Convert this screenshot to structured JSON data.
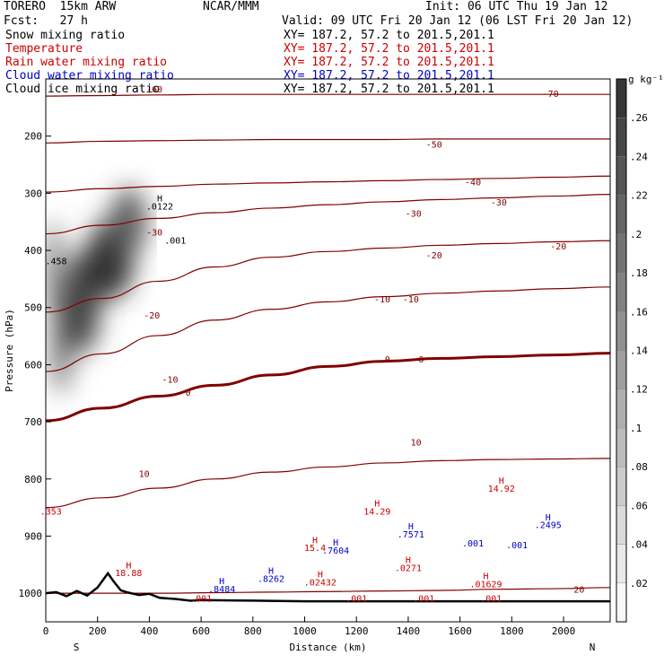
{
  "header": {
    "model": "TORERO  15km ARW",
    "fcst": "Fcst:   27 h",
    "center": "NCAR/MMM",
    "init": "Init: 06 UTC Thu 19 Jan 12",
    "valid": "Valid: 09 UTC Fri 20 Jan 12 (06 LST Fri 20 Jan 12)",
    "fields": [
      {
        "name": "Snow mixing ratio",
        "xy": "XY= 187.2, 57.2 to 201.5,201.1",
        "color": "#000000"
      },
      {
        "name": "Temperature",
        "xy": "XY= 187.2, 57.2 to 201.5,201.1",
        "color": "#cc0000"
      },
      {
        "name": "Rain water mixing ratio",
        "xy": "XY= 187.2, 57.2 to 201.5,201.1",
        "color": "#cc0000"
      },
      {
        "name": "Cloud water mixing ratio",
        "xy": "XY= 187.2, 57.2 to 201.5,201.1",
        "color": "#0000cc"
      },
      {
        "name": "Cloud ice mixing ratio",
        "xy": "XY= 187.2, 57.2 to 201.5,201.1",
        "color": "#000000"
      }
    ]
  },
  "chart_data": {
    "type": "cross-section",
    "xlabel": "Distance (km)",
    "ylabel": "Pressure (hPa)",
    "xlim": [
      0,
      2180
    ],
    "ylim": [
      1050,
      100
    ],
    "x_ticks": [
      0,
      200,
      400,
      600,
      800,
      1000,
      1200,
      1400,
      1600,
      1800,
      2000
    ],
    "y_ticks": [
      200,
      300,
      400,
      500,
      600,
      700,
      800,
      900,
      1000
    ],
    "x_end_labels": {
      "left": "S",
      "right": "N"
    },
    "colorbar": {
      "unit": "g kg⁻¹",
      "ticks": [
        ".02",
        ".04",
        ".06",
        ".08",
        ".1",
        ".12",
        ".14",
        ".16",
        ".18",
        ".2",
        ".22",
        ".24",
        ".26"
      ],
      "min": 0,
      "max": 0.28,
      "color_low": "#ffffff",
      "color_high": "#303030"
    },
    "temperature_isotherms": {
      "color": "#800000",
      "levels": [
        {
          "t": 20,
          "p": [
            1000,
            1000,
            1000,
            999,
            998,
            997,
            996,
            995,
            993,
            992,
            990
          ]
        },
        {
          "t": 10,
          "p": [
            850,
            833,
            816,
            800,
            788,
            779,
            772,
            768,
            766,
            765,
            764
          ]
        },
        {
          "t": 0,
          "p": [
            698,
            676,
            655,
            636,
            618,
            603,
            594,
            589,
            586,
            583,
            580
          ]
        },
        {
          "t": -10,
          "p": [
            612,
            581,
            549,
            522,
            503,
            490,
            481,
            475,
            471,
            467,
            464
          ]
        },
        {
          "t": -20,
          "p": [
            508,
            484,
            454,
            429,
            412,
            402,
            396,
            391,
            388,
            385,
            383
          ]
        },
        {
          "t": -30,
          "p": [
            371,
            356,
            344,
            334,
            326,
            320,
            315,
            311,
            308,
            305,
            302
          ]
        },
        {
          "t": -40,
          "p": [
            298,
            292,
            288,
            284,
            282,
            280,
            278,
            276,
            274,
            272,
            270
          ]
        },
        {
          "t": -50,
          "p": [
            212,
            209,
            208,
            207,
            206,
            206,
            206,
            205,
            205,
            205,
            205
          ]
        },
        {
          "t": -60,
          "p": [
            130,
            129,
            128,
            127,
            127,
            127,
            127,
            127,
            127,
            127,
            127
          ]
        }
      ],
      "isotherm_labels": [
        {
          "x": 420,
          "p": 117,
          "text": "-60"
        },
        {
          "x": 1950,
          "p": 125,
          "text": "-70"
        },
        {
          "x": 1500,
          "p": 214,
          "text": "-50"
        },
        {
          "x": 1650,
          "p": 280,
          "text": "-40"
        },
        {
          "x": 1420,
          "p": 335,
          "text": "-30"
        },
        {
          "x": 1750,
          "p": 315,
          "text": "-30"
        },
        {
          "x": 1500,
          "p": 408,
          "text": "-20"
        },
        {
          "x": 1980,
          "p": 392,
          "text": "-20"
        },
        {
          "x": 1300,
          "p": 485,
          "text": "-10"
        },
        {
          "x": 1410,
          "p": 485,
          "text": "-10"
        },
        {
          "x": 1320,
          "p": 590,
          "text": "0"
        },
        {
          "x": 1450,
          "p": 590,
          "text": "0"
        },
        {
          "x": 550,
          "p": 648,
          "text": "0"
        },
        {
          "x": 1430,
          "p": 735,
          "text": "10"
        },
        {
          "x": 380,
          "p": 790,
          "text": "10"
        },
        {
          "x": 2060,
          "p": 993,
          "text": "20"
        },
        {
          "x": 420,
          "p": 368,
          "text": "-30"
        },
        {
          "x": 410,
          "p": 513,
          "text": "-20"
        },
        {
          "x": 480,
          "p": 625,
          "text": "-10"
        }
      ]
    },
    "annotations": [
      {
        "x": 440,
        "p": 308,
        "text": "H",
        "color": "#000000"
      },
      {
        "x": 440,
        "p": 322,
        "text": ".0122",
        "color": "#000000"
      },
      {
        "x": 500,
        "p": 382,
        "text": ".001",
        "color": "#000000"
      },
      {
        "x": 40,
        "p": 418,
        "text": ".458",
        "color": "#000000"
      },
      {
        "x": 20,
        "p": 856,
        "text": ".353",
        "color": "#cc0000"
      },
      {
        "x": 320,
        "p": 950,
        "text": "H",
        "color": "#cc0000"
      },
      {
        "x": 320,
        "p": 964,
        "text": "18.88",
        "color": "#cc0000"
      },
      {
        "x": 1280,
        "p": 842,
        "text": "H",
        "color": "#cc0000"
      },
      {
        "x": 1280,
        "p": 856,
        "text": "14.29",
        "color": "#cc0000"
      },
      {
        "x": 1760,
        "p": 802,
        "text": "H",
        "color": "#cc0000"
      },
      {
        "x": 1760,
        "p": 816,
        "text": "14.92",
        "color": "#cc0000"
      },
      {
        "x": 1040,
        "p": 906,
        "text": "H",
        "color": "#cc0000"
      },
      {
        "x": 1040,
        "p": 920,
        "text": "15.4",
        "color": "#cc0000"
      },
      {
        "x": 680,
        "p": 978,
        "text": "H",
        "color": "#0000cc"
      },
      {
        "x": 680,
        "p": 992,
        "text": ".8484",
        "color": "#0000cc"
      },
      {
        "x": 870,
        "p": 960,
        "text": "H",
        "color": "#0000cc"
      },
      {
        "x": 870,
        "p": 974,
        "text": ".8262",
        "color": "#0000cc"
      },
      {
        "x": 1120,
        "p": 910,
        "text": "H",
        "color": "#0000cc"
      },
      {
        "x": 1120,
        "p": 924,
        "text": ".7604",
        "color": "#0000cc"
      },
      {
        "x": 1410,
        "p": 882,
        "text": "H",
        "color": "#0000cc"
      },
      {
        "x": 1410,
        "p": 896,
        "text": ".7571",
        "color": "#0000cc"
      },
      {
        "x": 1940,
        "p": 866,
        "text": "H",
        "color": "#0000cc"
      },
      {
        "x": 1940,
        "p": 880,
        "text": ".2495",
        "color": "#0000cc"
      },
      {
        "x": 1060,
        "p": 966,
        "text": "H",
        "color": "#cc0000"
      },
      {
        "x": 1060,
        "p": 980,
        "text": ".02432",
        "color": "#cc0000"
      },
      {
        "x": 1400,
        "p": 941,
        "text": "H",
        "color": "#cc0000"
      },
      {
        "x": 1400,
        "p": 955,
        "text": ".0271",
        "color": "#cc0000"
      },
      {
        "x": 1700,
        "p": 969,
        "text": "H",
        "color": "#cc0000"
      },
      {
        "x": 1700,
        "p": 983,
        "text": ".01629",
        "color": "#cc0000"
      },
      {
        "x": 1820,
        "p": 915,
        "text": ".001",
        "color": "#0000cc"
      },
      {
        "x": 1650,
        "p": 912,
        "text": ".001",
        "color": "#0000cc"
      },
      {
        "x": 1200,
        "p": 1008,
        "text": ".001",
        "color": "#cc0000"
      },
      {
        "x": 1460,
        "p": 1008,
        "text": ".001",
        "color": "#cc0000"
      },
      {
        "x": 1720,
        "p": 1008,
        "text": ".001",
        "color": "#cc0000"
      },
      {
        "x": 600,
        "p": 1008,
        "text": ".001",
        "color": "#cc0000"
      }
    ],
    "snow_field": {
      "description": "grey-shaded snow mixing ratio plume",
      "blobs": [
        {
          "x": 60,
          "p": 560,
          "rx": 40,
          "rp": 90,
          "q": 0.2
        },
        {
          "x": 140,
          "p": 490,
          "rx": 70,
          "rp": 90,
          "q": 0.26
        },
        {
          "x": 250,
          "p": 415,
          "rx": 90,
          "rp": 70,
          "q": 0.28
        },
        {
          "x": 320,
          "p": 350,
          "rx": 70,
          "rp": 60,
          "q": 0.22
        },
        {
          "x": 30,
          "p": 430,
          "rx": 30,
          "rp": 80,
          "q": 0.2
        }
      ]
    },
    "terrain": {
      "x": [
        0,
        40,
        80,
        120,
        160,
        200,
        240,
        260,
        290,
        320,
        360,
        400,
        440,
        500,
        560,
        600,
        800,
        1000,
        1400,
        1800,
        2180
      ],
      "p": [
        1000,
        998,
        1005,
        996,
        1004,
        990,
        965,
        978,
        995,
        999,
        1003,
        1001,
        1008,
        1010,
        1013,
        1012,
        1013,
        1014,
        1014,
        1014,
        1014
      ]
    }
  }
}
